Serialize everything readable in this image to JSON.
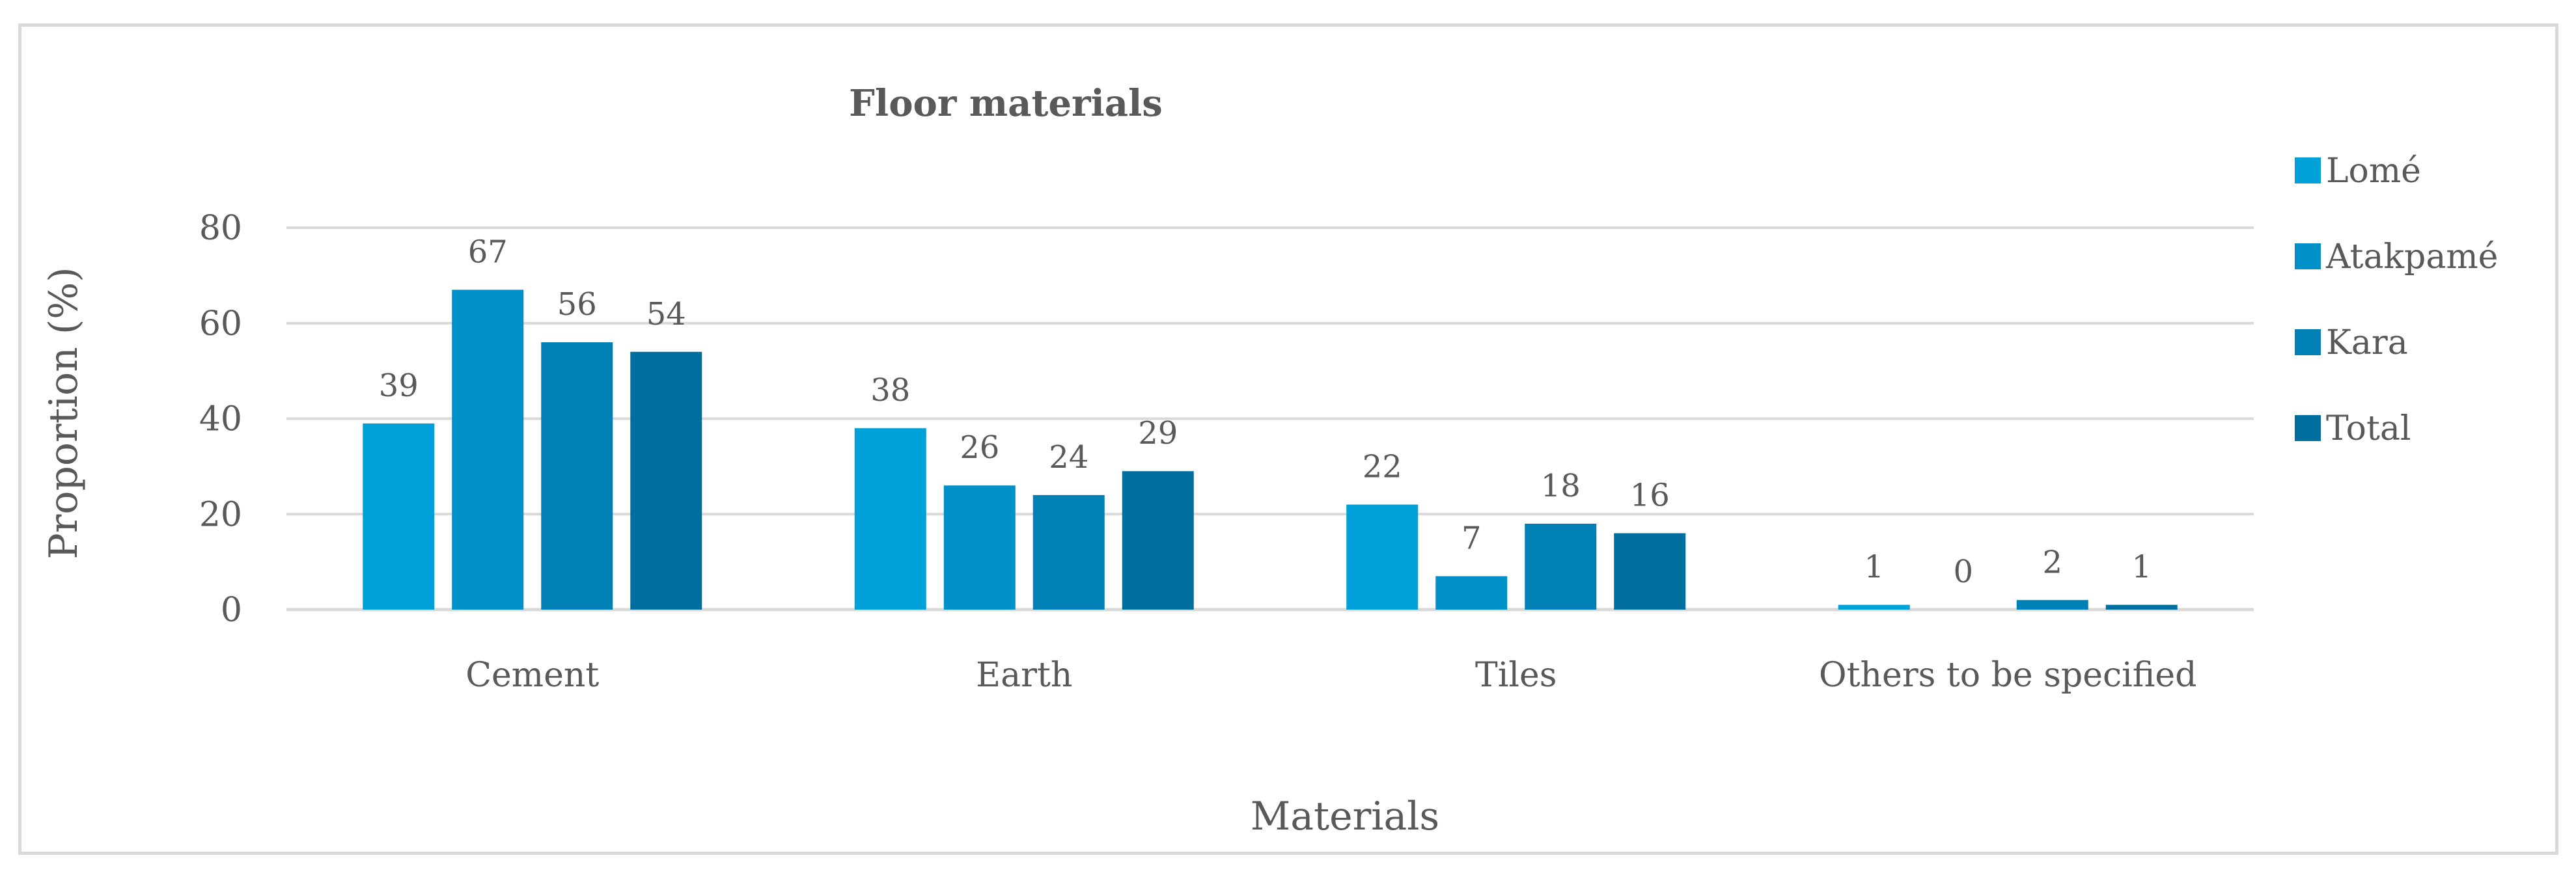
{
  "chart_data": {
    "type": "bar",
    "title": "Floor materials",
    "xlabel": "Materials",
    "ylabel": "Proportion (%)",
    "categories": [
      "Cement",
      "Earth",
      "Tiles",
      "Others to be specified"
    ],
    "series": [
      {
        "name": "Lomé",
        "values": [
          39,
          38,
          22,
          1
        ],
        "color": "#00a0d8"
      },
      {
        "name": "Atakpamé",
        "values": [
          67,
          26,
          7,
          0
        ],
        "color": "#0090c8"
      },
      {
        "name": "Kara",
        "values": [
          56,
          24,
          18,
          2
        ],
        "color": "#0080b4"
      },
      {
        "name": "Total",
        "values": [
          54,
          29,
          16,
          1
        ],
        "color": "#006fa0"
      }
    ],
    "ylim": [
      0,
      80
    ],
    "yticks": [
      0,
      20,
      40,
      60,
      80
    ],
    "grid": true,
    "legend_position": "right"
  }
}
